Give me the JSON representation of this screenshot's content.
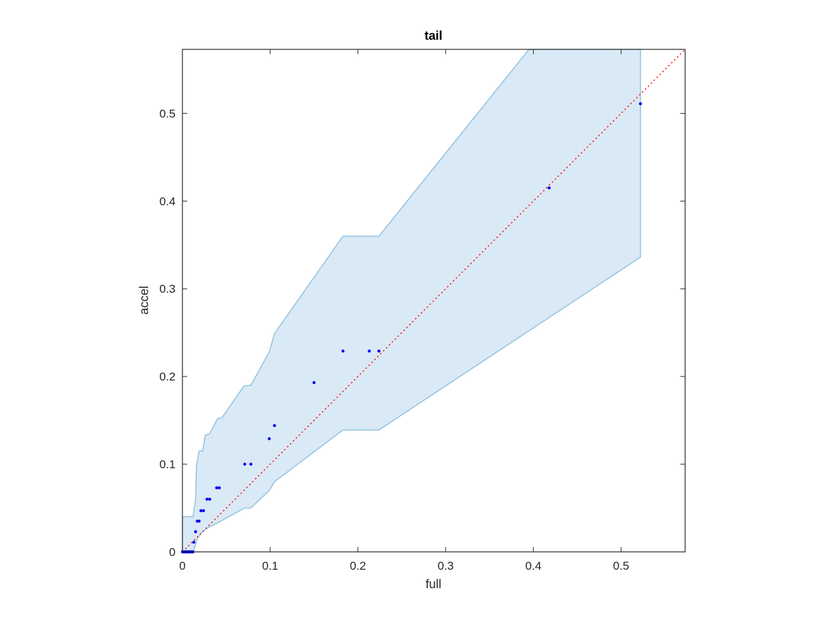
{
  "chart_data": {
    "type": "scatter",
    "title": "tail",
    "xlabel": "full",
    "ylabel": "accel",
    "xlim": [
      0,
      0.573
    ],
    "ylim": [
      0,
      0.573
    ],
    "xticks": [
      0,
      0.1,
      0.2,
      0.3,
      0.4,
      0.5
    ],
    "xtick_labels": [
      "0",
      "0.1",
      "0.2",
      "0.3",
      "0.4",
      "0.5"
    ],
    "yticks": [
      0,
      0.1,
      0.2,
      0.3,
      0.4,
      0.5
    ],
    "ytick_labels": [
      "0",
      "0.1",
      "0.2",
      "0.3",
      "0.4",
      "0.5"
    ],
    "grid": false,
    "colors": {
      "points": "#0000ff",
      "band_fill": "#d9e9f5",
      "band_edge": "#92c2df",
      "diagonal": "#ff0000",
      "axes": "#262626"
    },
    "points": [
      {
        "x": 0.0,
        "y": 0.0
      },
      {
        "x": 0.001,
        "y": 0.0
      },
      {
        "x": 0.002,
        "y": 0.0
      },
      {
        "x": 0.003,
        "y": 0.0
      },
      {
        "x": 0.004,
        "y": 0.0
      },
      {
        "x": 0.005,
        "y": 0.0
      },
      {
        "x": 0.006,
        "y": 0.0
      },
      {
        "x": 0.007,
        "y": 0.0
      },
      {
        "x": 0.008,
        "y": 0.0
      },
      {
        "x": 0.009,
        "y": 0.0
      },
      {
        "x": 0.01,
        "y": 0.0
      },
      {
        "x": 0.011,
        "y": 0.0
      },
      {
        "x": 0.012,
        "y": 0.0
      },
      {
        "x": 0.013,
        "y": 0.011
      },
      {
        "x": 0.015,
        "y": 0.023
      },
      {
        "x": 0.017,
        "y": 0.035
      },
      {
        "x": 0.019,
        "y": 0.035
      },
      {
        "x": 0.021,
        "y": 0.047
      },
      {
        "x": 0.024,
        "y": 0.047
      },
      {
        "x": 0.028,
        "y": 0.06
      },
      {
        "x": 0.031,
        "y": 0.06
      },
      {
        "x": 0.039,
        "y": 0.073
      },
      {
        "x": 0.042,
        "y": 0.073
      },
      {
        "x": 0.071,
        "y": 0.1
      },
      {
        "x": 0.078,
        "y": 0.1
      },
      {
        "x": 0.099,
        "y": 0.129
      },
      {
        "x": 0.105,
        "y": 0.144
      },
      {
        "x": 0.15,
        "y": 0.193
      },
      {
        "x": 0.183,
        "y": 0.229
      },
      {
        "x": 0.213,
        "y": 0.229
      },
      {
        "x": 0.224,
        "y": 0.229
      },
      {
        "x": 0.418,
        "y": 0.415
      },
      {
        "x": 0.522,
        "y": 0.511
      }
    ],
    "band_upper": [
      {
        "x": 0.0,
        "y": 0.04
      },
      {
        "x": 0.012,
        "y": 0.04
      },
      {
        "x": 0.015,
        "y": 0.06
      },
      {
        "x": 0.016,
        "y": 0.098
      },
      {
        "x": 0.019,
        "y": 0.115
      },
      {
        "x": 0.023,
        "y": 0.115
      },
      {
        "x": 0.026,
        "y": 0.133
      },
      {
        "x": 0.031,
        "y": 0.135
      },
      {
        "x": 0.04,
        "y": 0.152
      },
      {
        "x": 0.045,
        "y": 0.153
      },
      {
        "x": 0.07,
        "y": 0.189
      },
      {
        "x": 0.078,
        "y": 0.19
      },
      {
        "x": 0.099,
        "y": 0.228
      },
      {
        "x": 0.105,
        "y": 0.249
      },
      {
        "x": 0.183,
        "y": 0.36
      },
      {
        "x": 0.224,
        "y": 0.36
      },
      {
        "x": 0.395,
        "y": 0.573
      },
      {
        "x": 0.522,
        "y": 0.573
      }
    ],
    "band_lower": [
      {
        "x": 0.522,
        "y": 0.336
      },
      {
        "x": 0.224,
        "y": 0.139
      },
      {
        "x": 0.183,
        "y": 0.139
      },
      {
        "x": 0.105,
        "y": 0.08
      },
      {
        "x": 0.099,
        "y": 0.07
      },
      {
        "x": 0.078,
        "y": 0.05
      },
      {
        "x": 0.071,
        "y": 0.05
      },
      {
        "x": 0.04,
        "y": 0.033
      },
      {
        "x": 0.03,
        "y": 0.028
      },
      {
        "x": 0.022,
        "y": 0.022
      },
      {
        "x": 0.017,
        "y": 0.015
      },
      {
        "x": 0.014,
        "y": 0.005
      },
      {
        "x": 0.012,
        "y": 0.0
      },
      {
        "x": 0.0,
        "y": 0.0
      }
    ],
    "diagonal": [
      {
        "x": 0,
        "y": 0
      },
      {
        "x": 0.573,
        "y": 0.573
      }
    ]
  }
}
